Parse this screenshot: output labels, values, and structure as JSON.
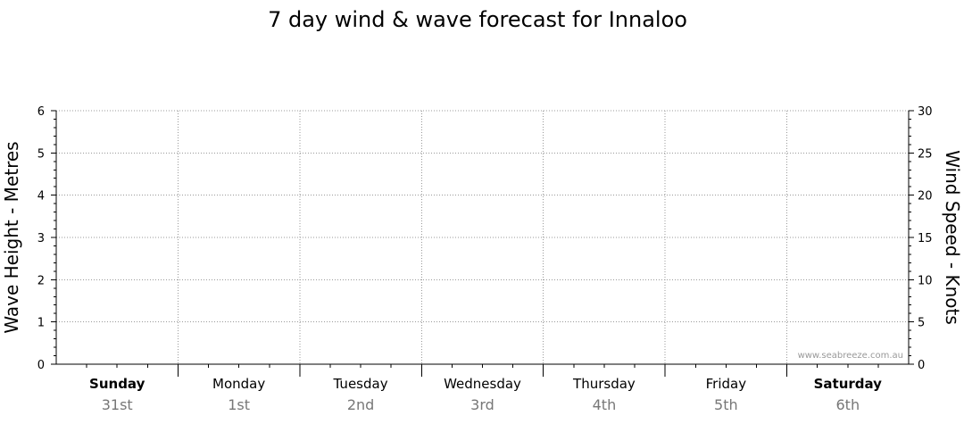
{
  "chart_data": {
    "type": "line",
    "title": "7 day wind & wave forecast for Innaloo",
    "y_left": {
      "label": "Wave Height - Metres",
      "range": [
        0,
        6
      ],
      "ticks": [
        "0",
        "1",
        "2",
        "3",
        "4",
        "5",
        "6"
      ]
    },
    "y_right": {
      "label": "Wind Speed - Knots",
      "range": [
        0,
        30
      ],
      "ticks": [
        "0",
        "5",
        "10",
        "15",
        "20",
        "25",
        "30"
      ]
    },
    "categories": [
      {
        "day": "Sunday",
        "date": "31st",
        "weekend": true
      },
      {
        "day": "Monday",
        "date": "1st",
        "weekend": false
      },
      {
        "day": "Tuesday",
        "date": "2nd",
        "weekend": false
      },
      {
        "day": "Wednesday",
        "date": "3rd",
        "weekend": false
      },
      {
        "day": "Thursday",
        "date": "4th",
        "weekend": false
      },
      {
        "day": "Friday",
        "date": "5th",
        "weekend": false
      },
      {
        "day": "Saturday",
        "date": "6th",
        "weekend": true
      }
    ],
    "series": [],
    "grid": true,
    "watermark": "www.seabreeze.com.au"
  }
}
